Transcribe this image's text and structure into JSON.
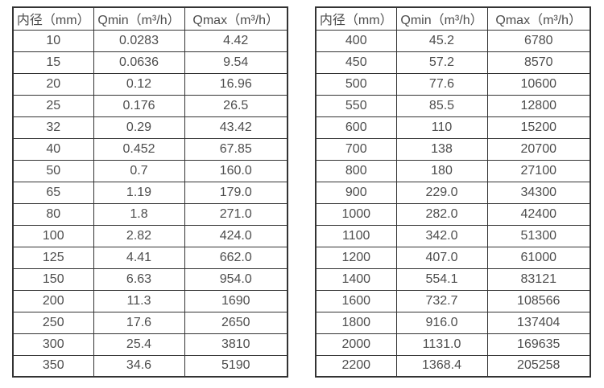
{
  "headers": [
    "内径（mm）",
    "Qmin（m³/h）",
    "Qmax（m³/h）"
  ],
  "colors": {
    "border": "#333333",
    "text": "#4d4d4d",
    "background": "#ffffff"
  },
  "left_table": {
    "rows": [
      [
        "10",
        "0.0283",
        "4.42"
      ],
      [
        "15",
        "0.0636",
        "9.54"
      ],
      [
        "20",
        "0.12",
        "16.96"
      ],
      [
        "25",
        "0.176",
        "26.5"
      ],
      [
        "32",
        "0.29",
        "43.42"
      ],
      [
        "40",
        "0.452",
        "67.85"
      ],
      [
        "50",
        "0.7",
        "160.0"
      ],
      [
        "65",
        "1.19",
        "179.0"
      ],
      [
        "80",
        "1.8",
        "271.0"
      ],
      [
        "100",
        "2.82",
        "424.0"
      ],
      [
        "125",
        "4.41",
        "662.0"
      ],
      [
        "150",
        "6.63",
        "954.0"
      ],
      [
        "200",
        "11.3",
        "1690"
      ],
      [
        "250",
        "17.6",
        "2650"
      ],
      [
        "300",
        "25.4",
        "3810"
      ],
      [
        "350",
        "34.6",
        "5190"
      ]
    ]
  },
  "right_table": {
    "rows": [
      [
        "400",
        "45.2",
        "6780"
      ],
      [
        "450",
        "57.2",
        "8570"
      ],
      [
        "500",
        "77.6",
        "10600"
      ],
      [
        "550",
        "85.5",
        "12800"
      ],
      [
        "600",
        "110",
        "15200"
      ],
      [
        "700",
        "138",
        "20700"
      ],
      [
        "800",
        "180",
        "27100"
      ],
      [
        "900",
        "229.0",
        "34300"
      ],
      [
        "1000",
        "282.0",
        "42400"
      ],
      [
        "1100",
        "342.0",
        "51300"
      ],
      [
        "1200",
        "407.0",
        "61000"
      ],
      [
        "1400",
        "554.1",
        "83121"
      ],
      [
        "1600",
        "732.7",
        "108566"
      ],
      [
        "1800",
        "916.0",
        "137404"
      ],
      [
        "2000",
        "1131.0",
        "169635"
      ],
      [
        "2200",
        "1368.4",
        "205258"
      ]
    ]
  }
}
